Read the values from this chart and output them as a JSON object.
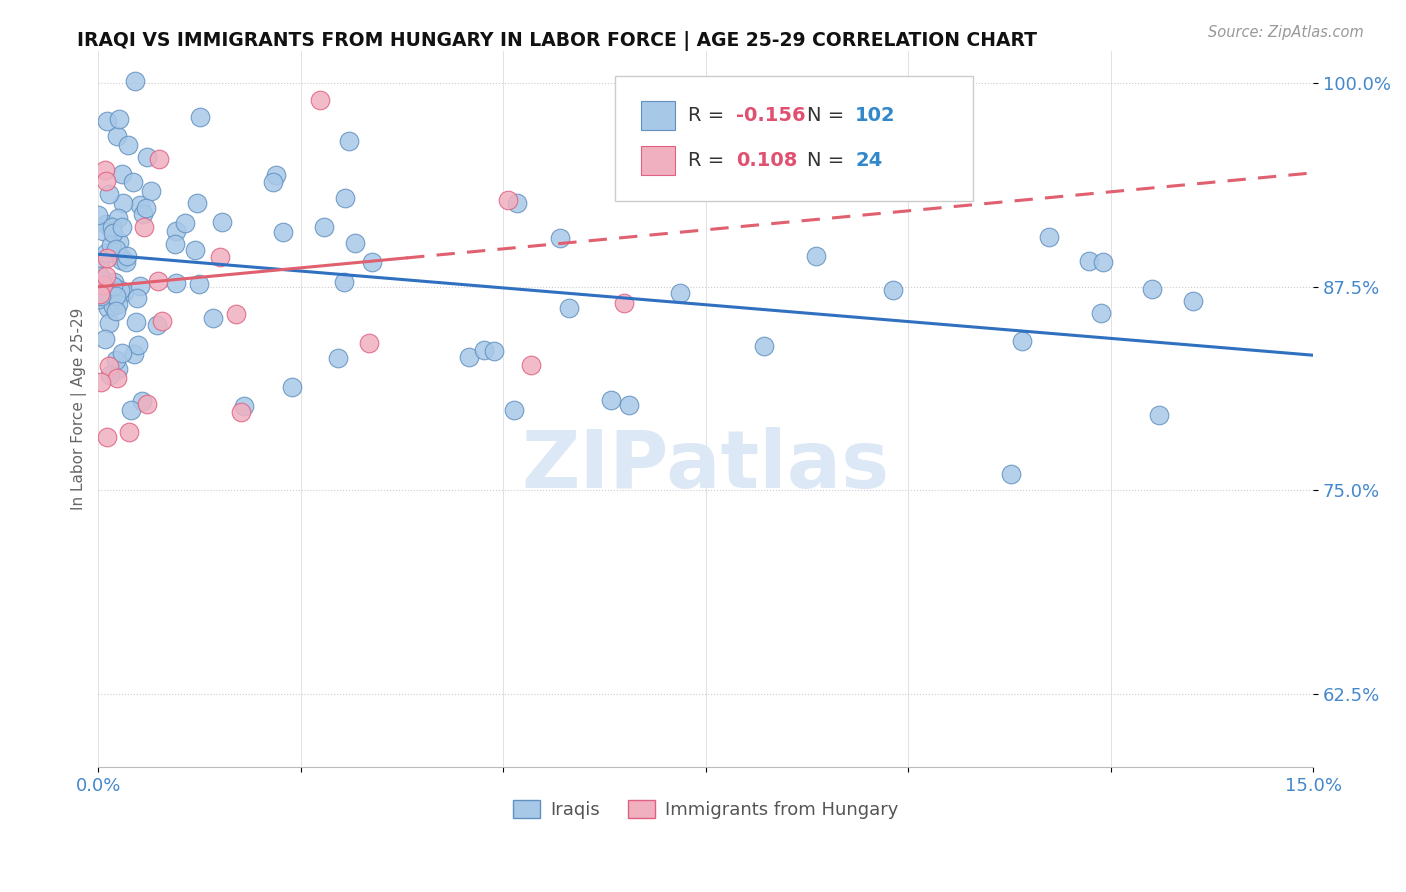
{
  "title": "IRAQI VS IMMIGRANTS FROM HUNGARY IN LABOR FORCE | AGE 25-29 CORRELATION CHART",
  "source": "Source: ZipAtlas.com",
  "ylabel": "In Labor Force | Age 25-29",
  "xlim": [
    0.0,
    0.15
  ],
  "ylim": [
    0.58,
    1.02
  ],
  "xtick_positions": [
    0.0,
    0.025,
    0.05,
    0.075,
    0.1,
    0.125,
    0.15
  ],
  "xtick_labels": [
    "0.0%",
    "",
    "",
    "",
    "",
    "",
    "15.0%"
  ],
  "ytick_positions": [
    0.625,
    0.75,
    0.875,
    1.0
  ],
  "ytick_labels": [
    "62.5%",
    "75.0%",
    "87.5%",
    "100.0%"
  ],
  "iraqis_color": "#a8c8e8",
  "hungary_color": "#f0b0c0",
  "iraqis_edge": "#6090c0",
  "hungary_edge": "#e06080",
  "trend_iraq_color": "#3070c0",
  "trend_hungary_color": "#e06070",
  "legend_r1": "-0.156",
  "legend_n1": "102",
  "legend_r2": "0.108",
  "legend_n2": "24",
  "trend_iraq_x0": 0.0,
  "trend_iraq_y0": 0.895,
  "trend_iraq_x1": 0.15,
  "trend_iraq_y1": 0.833,
  "trend_hungary_x0": 0.0,
  "trend_hungary_y0": 0.875,
  "trend_hungary_x1": 0.15,
  "trend_hungary_y1": 0.945,
  "trend_hungary_solid_end": 0.038,
  "watermark_text": "ZIPatlas",
  "background_color": "#ffffff",
  "dotted_line_color": "#cccccc",
  "tick_color": "#4488cc",
  "title_color": "#111111",
  "source_color": "#999999",
  "ylabel_color": "#666666"
}
